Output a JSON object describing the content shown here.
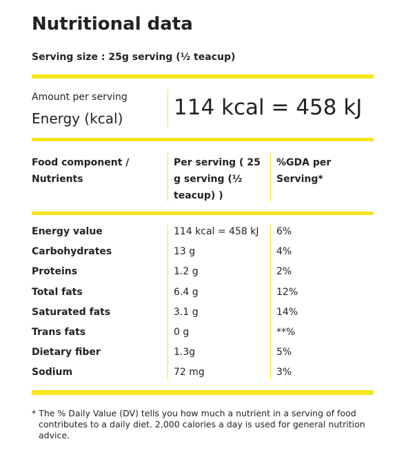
{
  "header": {
    "title": "Nutritional data",
    "serving_size": "Serving size : 25g serving (½ teacup)"
  },
  "summary": {
    "amount_label": "Amount per serving",
    "energy_label": "Energy (kcal)",
    "energy_value": "114 kcal = 458 kJ"
  },
  "table": {
    "header": [
      "Food component / Nutrients",
      "Per serving ( 25 g serving (½ teacup) )",
      "%GDA per Serving*"
    ],
    "rows": [
      [
        "Energy value",
        "114 kcal = 458 kJ",
        "6%"
      ],
      [
        "Carbohydrates",
        "13 g",
        "4%"
      ],
      [
        "Proteins",
        "1.2 g",
        "2%"
      ],
      [
        "Total fats",
        "6.4 g",
        "12%"
      ],
      [
        "Saturated fats",
        "3.1 g",
        "14%"
      ],
      [
        "Trans fats",
        "0 g",
        "**%"
      ],
      [
        "Dietary fiber",
        "1.3g",
        "5%"
      ],
      [
        "Sodium",
        "72 mg",
        "3%"
      ]
    ]
  },
  "footnote": "* The % Daily Value (DV) tells you how much a nutrient in a serving of food contributes to a daily diet. 2,000 calories a day is used for general nutrition advice."
}
